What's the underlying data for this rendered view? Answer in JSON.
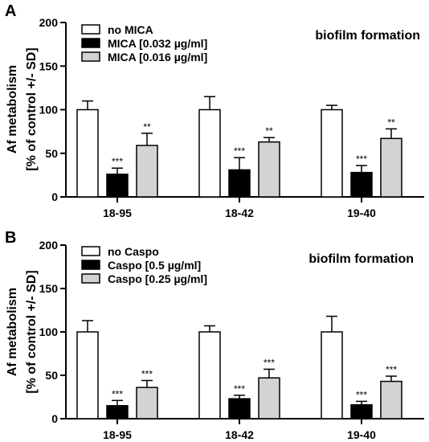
{
  "chart_data": [
    {
      "type": "bar",
      "panel_label": "A",
      "annotation": "biofilm formation",
      "ylabel": [
        "Af metabolism",
        "[% of control +/- SD]"
      ],
      "ylim": [
        0,
        200
      ],
      "yticks": [
        0,
        50,
        100,
        150,
        200
      ],
      "categories": [
        "18-95",
        "18-42",
        "19-40"
      ],
      "legend_position": "top-left",
      "series": [
        {
          "name": "no MICA",
          "color": "#ffffff",
          "values": [
            100,
            100,
            100
          ],
          "error": [
            10,
            15,
            5
          ],
          "significance": [
            "",
            "",
            ""
          ]
        },
        {
          "name": "MICA [0.032 µg/ml]",
          "color": "#000000",
          "values": [
            26,
            31,
            28
          ],
          "error": [
            7,
            14,
            8
          ],
          "significance": [
            "***",
            "***",
            "***"
          ]
        },
        {
          "name": "MICA [0.016 µg/ml]",
          "color": "#d3d3d3",
          "values": [
            59,
            63,
            67
          ],
          "error": [
            14,
            5,
            11
          ],
          "significance": [
            "**",
            "**",
            "**"
          ]
        }
      ]
    },
    {
      "type": "bar",
      "panel_label": "B",
      "annotation": "biofilm formation",
      "ylabel": [
        "Af metabolism",
        "[% of control +/- SD]"
      ],
      "ylim": [
        0,
        200
      ],
      "yticks": [
        0,
        50,
        100,
        150,
        200
      ],
      "categories": [
        "18-95",
        "18-42",
        "19-40"
      ],
      "legend_position": "top-left",
      "series": [
        {
          "name": "no Caspo",
          "color": "#ffffff",
          "values": [
            100,
            100,
            100
          ],
          "error": [
            13,
            7,
            18
          ],
          "significance": [
            "",
            "",
            ""
          ]
        },
        {
          "name": "Caspo [0.5 µg/ml]",
          "color": "#000000",
          "values": [
            15,
            23,
            16
          ],
          "error": [
            6,
            4,
            4
          ],
          "significance": [
            "***",
            "***",
            "***"
          ]
        },
        {
          "name": "Caspo [0.25 µg/ml]",
          "color": "#d3d3d3",
          "values": [
            36,
            47,
            43
          ],
          "error": [
            8,
            10,
            6
          ],
          "significance": [
            "***",
            "***",
            "***"
          ]
        }
      ]
    }
  ]
}
